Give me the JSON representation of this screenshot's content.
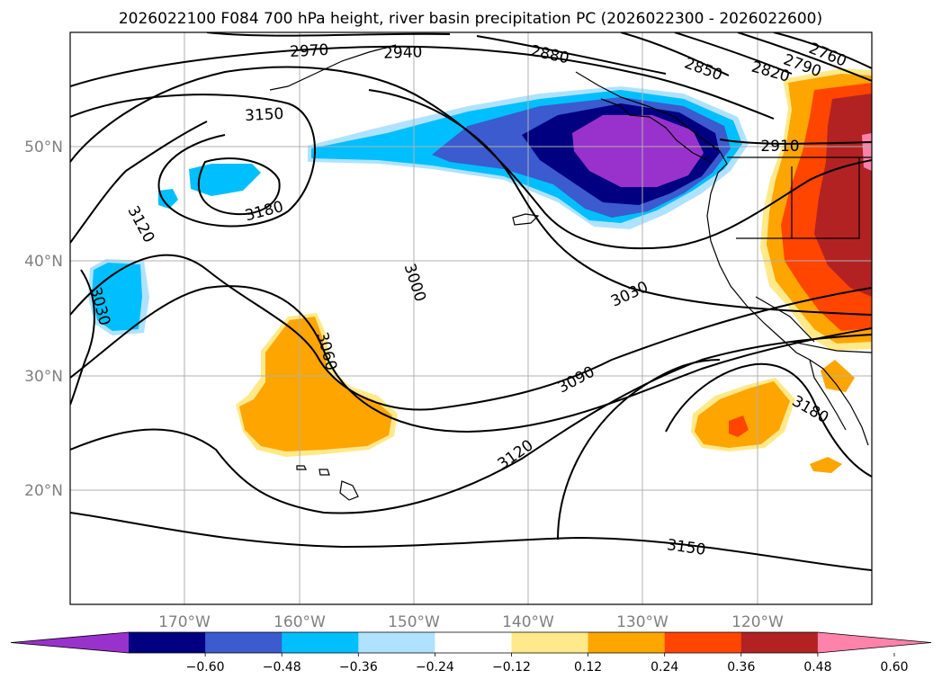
{
  "title": "2026022100 F084 700 hPa height, river basin precipitation PC (2026022300 - 2026022600)",
  "map": {
    "lat_labels": [
      "50°N",
      "40°N",
      "30°N",
      "20°N"
    ],
    "lon_labels": [
      "170°W",
      "160°W",
      "150°W",
      "140°W",
      "130°W",
      "120°W"
    ],
    "contour_labels": [
      "2970",
      "2940",
      "2880",
      "2850",
      "2820",
      "2790",
      "2760",
      "2910",
      "3150",
      "3180",
      "3120",
      "3030",
      "3060",
      "3000",
      "3030",
      "3090",
      "3120",
      "3180",
      "3150"
    ]
  },
  "colorbar": {
    "ticks": [
      "−0.60",
      "−0.48",
      "−0.36",
      "−0.24",
      "−0.12",
      "0.12",
      "0.24",
      "0.36",
      "0.48",
      "0.60"
    ],
    "colors": [
      "#9932cc",
      "#000080",
      "#3b5bcf",
      "#00bfff",
      "#b0e2ff",
      "#ffffff",
      "#ffe98a",
      "#ffa500",
      "#ff4500",
      "#b22222",
      "#ff82ab"
    ]
  }
}
